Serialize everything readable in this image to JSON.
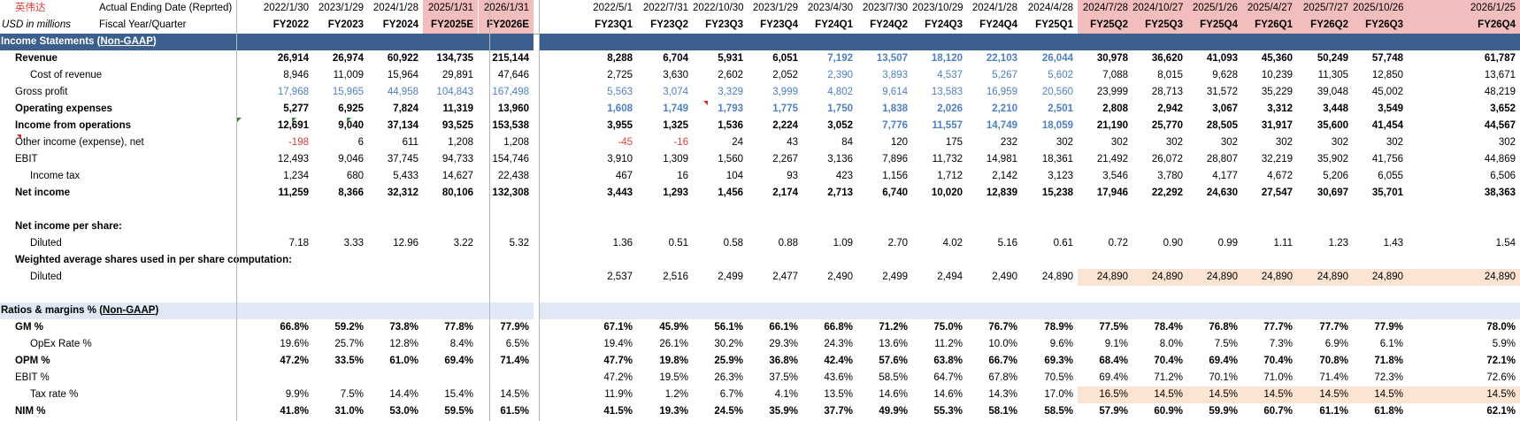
{
  "colors": {
    "navy": "#3b5f8f",
    "pink": "#f2bdbd",
    "peach": "#fce4d2",
    "lightblue": "#dfe8f4",
    "blue": "#4e7fc2",
    "red": "#e03c3c"
  },
  "header": {
    "company": "英伟达",
    "row1_label": "Actual Ending Date (Reprted)",
    "units": "USD in millions",
    "row2_label": "Fiscal Year/Quarter",
    "annual_dates": [
      "2022/1/30",
      "2023/1/29",
      "2024/1/28",
      "2025/1/31",
      "2026/1/31"
    ],
    "annual_periods": [
      "FY2022",
      "FY2023",
      "FY2024",
      "FY2025E",
      "FY2026E"
    ],
    "quarter_dates": [
      "2022/5/1",
      "2022/7/31",
      "2022/10/30",
      "2023/1/29",
      "2023/4/30",
      "2023/7/30",
      "2023/10/29",
      "2024/1/28",
      "2024/4/28",
      "2024/7/28",
      "2024/10/27",
      "2025/1/26",
      "2025/4/27",
      "2025/7/27",
      "2025/10/26",
      "2026/1/25"
    ],
    "quarter_periods": [
      "FY23Q1",
      "FY23Q2",
      "FY23Q3",
      "FY23Q4",
      "FY24Q1",
      "FY24Q2",
      "FY24Q3",
      "FY24Q4",
      "FY25Q1",
      "FY25Q2",
      "FY25Q3",
      "FY25Q4",
      "FY26Q1",
      "FY26Q2",
      "FY26Q3",
      "FY26Q4"
    ]
  },
  "sections": {
    "income": {
      "title": "Income Statements (",
      "title_link": "Non-GAAP",
      "title_end": ")"
    },
    "ratios": {
      "title": "Ratios & margins % (",
      "title_link": "Non-GAAP",
      "title_end": ")"
    }
  },
  "rows": [
    {
      "key": "revenue",
      "label": "Revenue",
      "bold": true,
      "annual": [
        "26,914",
        "26,974",
        "60,922",
        "134,735",
        "215,144"
      ],
      "quarter": [
        "8,288",
        "6,704",
        "5,931",
        "6,051",
        "7,192",
        "13,507",
        "18,120",
        "22,103",
        "26,044",
        "30,978",
        "36,620",
        "41,093",
        "45,360",
        "50,249",
        "57,748",
        "61,787"
      ]
    },
    {
      "key": "cost_of_revenue",
      "label": "Cost of revenue",
      "annual": [
        "8,946",
        "11,009",
        "15,964",
        "29,891",
        "47,646"
      ],
      "quarter": [
        "2,725",
        "3,630",
        "2,602",
        "2,052",
        "2,390",
        "3,893",
        "4,537",
        "5,267",
        "5,602",
        "7,088",
        "8,015",
        "9,628",
        "10,239",
        "11,305",
        "12,850",
        "13,671"
      ]
    },
    {
      "key": "gross_profit",
      "label": "Gross profit",
      "annual": [
        "17,968",
        "15,965",
        "44,958",
        "104,843",
        "167,498"
      ],
      "quarter": [
        "5,563",
        "3,074",
        "3,329",
        "3,999",
        "4,802",
        "9,614",
        "13,583",
        "16,959",
        "20,560",
        "23,999",
        "28,713",
        "31,572",
        "35,229",
        "39,048",
        "45,002",
        "48,219"
      ]
    },
    {
      "key": "operating_expenses",
      "label": "Operating expenses",
      "bold": true,
      "annual": [
        "5,277",
        "6,925",
        "7,824",
        "11,319",
        "13,960"
      ],
      "quarter": [
        "1,608",
        "1,749",
        "1,793",
        "1,775",
        "1,750",
        "1,838",
        "2,026",
        "2,210",
        "2,501",
        "2,808",
        "2,942",
        "3,067",
        "3,312",
        "3,448",
        "3,549",
        "3,652"
      ]
    },
    {
      "key": "income_from_operations",
      "label": "Income from operations",
      "bold": true,
      "annual": [
        "12,691",
        "9,040",
        "37,134",
        "93,525",
        "153,538"
      ],
      "quarter": [
        "3,955",
        "1,325",
        "1,536",
        "2,224",
        "3,052",
        "7,776",
        "11,557",
        "14,749",
        "18,059",
        "21,190",
        "25,770",
        "28,505",
        "31,917",
        "35,600",
        "41,454",
        "44,567"
      ]
    },
    {
      "key": "other_income",
      "label": "Other income (expense), net",
      "annual": [
        "-198",
        "6",
        "611",
        "1,208",
        "1,208"
      ],
      "quarter": [
        "-45",
        "-16",
        "24",
        "43",
        "84",
        "120",
        "175",
        "232",
        "302",
        "302",
        "302",
        "302",
        "302",
        "302",
        "302",
        "302"
      ]
    },
    {
      "key": "ebit",
      "label": "EBIT",
      "annual": [
        "12,493",
        "9,046",
        "37,745",
        "94,733",
        "154,746"
      ],
      "quarter": [
        "3,910",
        "1,309",
        "1,560",
        "2,267",
        "3,136",
        "7,896",
        "11,732",
        "14,981",
        "18,361",
        "21,492",
        "26,072",
        "28,807",
        "32,219",
        "35,902",
        "41,756",
        "44,869"
      ]
    },
    {
      "key": "income_tax",
      "label": "Income tax",
      "annual": [
        "1,234",
        "680",
        "5,433",
        "14,627",
        "22,438"
      ],
      "quarter": [
        "467",
        "16",
        "104",
        "93",
        "423",
        "1,156",
        "1,712",
        "2,142",
        "3,123",
        "3,546",
        "3,780",
        "4,177",
        "4,672",
        "5,206",
        "6,055",
        "6,506"
      ]
    },
    {
      "key": "net_income",
      "label": "Net income",
      "bold": true,
      "annual": [
        "11,259",
        "8,366",
        "32,312",
        "80,106",
        "132,308"
      ],
      "quarter": [
        "3,443",
        "1,293",
        "1,456",
        "2,174",
        "2,713",
        "6,740",
        "10,020",
        "12,839",
        "15,238",
        "17,946",
        "22,292",
        "24,630",
        "27,547",
        "30,697",
        "35,701",
        "38,363"
      ]
    },
    {
      "key": "eps_header",
      "label": "Net income per share:",
      "bold": true,
      "annual": [],
      "quarter": []
    },
    {
      "key": "eps_diluted",
      "label": "Diluted",
      "annual": [
        "7.18",
        "3.33",
        "12.96",
        "3.22",
        "5.32"
      ],
      "quarter": [
        "1.36",
        "0.51",
        "0.58",
        "0.88",
        "1.09",
        "2.70",
        "4.02",
        "5.16",
        "0.61",
        "0.72",
        "0.90",
        "0.99",
        "1.11",
        "1.23",
        "1.43",
        "1.54"
      ]
    },
    {
      "key": "shares_header",
      "label": "Weighted average shares used in per share computation:",
      "bold": true,
      "annual": [],
      "quarter": []
    },
    {
      "key": "shares_diluted",
      "label": "Diluted",
      "annual": [
        "",
        "",
        "",
        "",
        ""
      ],
      "quarter": [
        "2,537",
        "2,516",
        "2,499",
        "2,477",
        "2,490",
        "2,499",
        "2,494",
        "2,490",
        "24,890",
        "24,890",
        "24,890",
        "24,890",
        "24,890",
        "24,890",
        "24,890",
        "24,890"
      ]
    },
    {
      "key": "gm",
      "label": "GM %",
      "bold": true,
      "annual": [
        "66.8%",
        "59.2%",
        "73.8%",
        "77.8%",
        "77.9%"
      ],
      "quarter": [
        "67.1%",
        "45.9%",
        "56.1%",
        "66.1%",
        "66.8%",
        "71.2%",
        "75.0%",
        "76.7%",
        "78.9%",
        "77.5%",
        "78.4%",
        "76.8%",
        "77.7%",
        "77.7%",
        "77.9%",
        "78.0%"
      ]
    },
    {
      "key": "opex_rate",
      "label": "OpEx Rate %",
      "annual": [
        "19.6%",
        "25.7%",
        "12.8%",
        "8.4%",
        "6.5%"
      ],
      "quarter": [
        "19.4%",
        "26.1%",
        "30.2%",
        "29.3%",
        "24.3%",
        "13.6%",
        "11.2%",
        "10.0%",
        "9.6%",
        "9.1%",
        "8.0%",
        "7.5%",
        "7.3%",
        "6.9%",
        "6.1%",
        "5.9%"
      ]
    },
    {
      "key": "opm",
      "label": "OPM %",
      "bold": true,
      "annual": [
        "47.2%",
        "33.5%",
        "61.0%",
        "69.4%",
        "71.4%"
      ],
      "quarter": [
        "47.7%",
        "19.8%",
        "25.9%",
        "36.8%",
        "42.4%",
        "57.6%",
        "63.8%",
        "66.7%",
        "69.3%",
        "68.4%",
        "70.4%",
        "69.4%",
        "70.4%",
        "70.8%",
        "71.8%",
        "72.1%"
      ]
    },
    {
      "key": "ebit_pct",
      "label": "EBIT %",
      "annual": [
        "",
        "",
        "",
        "",
        ""
      ],
      "quarter": [
        "47.2%",
        "19.5%",
        "26.3%",
        "37.5%",
        "43.6%",
        "58.5%",
        "64.7%",
        "67.8%",
        "70.5%",
        "69.4%",
        "71.2%",
        "70.1%",
        "71.0%",
        "71.4%",
        "72.3%",
        "72.6%"
      ]
    },
    {
      "key": "tax_rate",
      "label": "Tax rate %",
      "annual": [
        "9.9%",
        "7.5%",
        "14.4%",
        "15.4%",
        "14.5%"
      ],
      "quarter": [
        "11.9%",
        "1.2%",
        "6.7%",
        "4.1%",
        "13.5%",
        "14.6%",
        "14.6%",
        "14.3%",
        "17.0%",
        "16.5%",
        "14.5%",
        "14.5%",
        "14.5%",
        "14.5%",
        "14.5%",
        "14.5%"
      ]
    },
    {
      "key": "nim",
      "label": "NIM %",
      "bold": true,
      "annual": [
        "41.8%",
        "31.0%",
        "53.0%",
        "59.5%",
        "61.5%"
      ],
      "quarter": [
        "41.5%",
        "19.3%",
        "24.5%",
        "35.9%",
        "37.7%",
        "49.9%",
        "55.3%",
        "58.1%",
        "58.5%",
        "57.9%",
        "60.9%",
        "59.9%",
        "60.7%",
        "61.1%",
        "61.8%",
        "62.1%"
      ]
    }
  ]
}
